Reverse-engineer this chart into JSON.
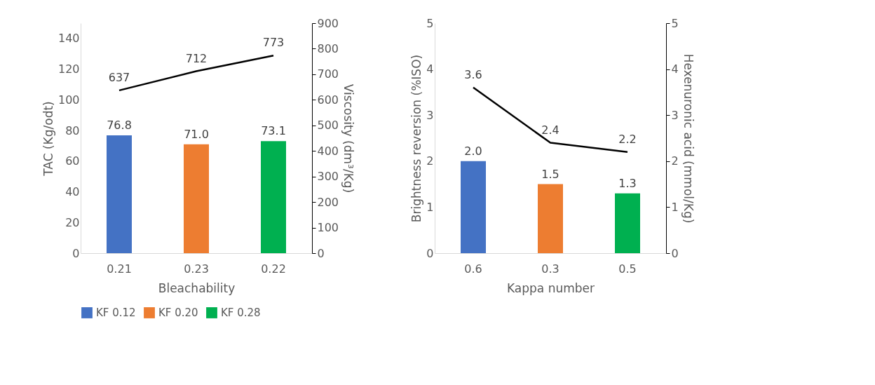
{
  "chart_data": [
    {
      "type": "bar",
      "categories": [
        "0.21",
        "0.23",
        "0.22"
      ],
      "xlabel": "Bleachability",
      "ylabel": "TAC (Kg/odt)",
      "y2label": "Viscosity (dm³/Kg)",
      "ylim": [
        0,
        150
      ],
      "yticks": [
        0,
        20,
        40,
        60,
        80,
        100,
        120,
        140
      ],
      "y2lim": [
        0,
        900
      ],
      "y2ticks": [
        0,
        100,
        200,
        300,
        400,
        500,
        600,
        700,
        800,
        900
      ],
      "legend": "bottom",
      "grid": false,
      "series": [
        {
          "name": "KF 0.12",
          "color": "#4472c4",
          "values": [
            76.8,
            null,
            null
          ],
          "value_labels": [
            "76.8",
            null,
            null
          ]
        },
        {
          "name": "KF 0.20",
          "color": "#ed7d31",
          "values": [
            null,
            71.0,
            null
          ],
          "value_labels": [
            null,
            "71.0",
            null
          ]
        },
        {
          "name": "KF 0.28",
          "color": "#00b050",
          "values": [
            null,
            null,
            73.1
          ],
          "value_labels": [
            null,
            null,
            "73.1"
          ]
        },
        {
          "type": "line",
          "axis": "y2",
          "color": "#000000",
          "values": [
            637,
            712,
            773
          ],
          "value_labels": [
            "637",
            "712",
            "773"
          ]
        }
      ]
    },
    {
      "type": "bar",
      "categories": [
        "0.6",
        "0.3",
        "0.5"
      ],
      "xlabel": "Kappa number",
      "ylabel": "Brightness reversion (%ISO)",
      "y2label": "Hexenuronic acid (mmol/Kg)",
      "ylim": [
        0,
        5
      ],
      "yticks": [
        0,
        1,
        2,
        3,
        4,
        5
      ],
      "y2lim": [
        0,
        5
      ],
      "y2ticks": [
        0,
        1,
        2,
        3,
        4,
        5
      ],
      "legend": "bottom",
      "grid": false,
      "series": [
        {
          "name": "KF 0.12",
          "color": "#4472c4",
          "values": [
            2.0,
            null,
            null
          ],
          "value_labels": [
            "2.0",
            null,
            null
          ]
        },
        {
          "name": "KF 0.20",
          "color": "#ed7d31",
          "values": [
            null,
            1.5,
            null
          ],
          "value_labels": [
            null,
            "1.5",
            null
          ]
        },
        {
          "name": "KF 0.28",
          "color": "#00b050",
          "values": [
            null,
            null,
            1.3
          ],
          "value_labels": [
            null,
            null,
            "1.3"
          ]
        },
        {
          "type": "line",
          "axis": "y2",
          "color": "#000000",
          "values": [
            3.6,
            2.4,
            2.2
          ],
          "value_labels": [
            "3.6",
            "2.4",
            "2.2"
          ]
        }
      ]
    }
  ]
}
